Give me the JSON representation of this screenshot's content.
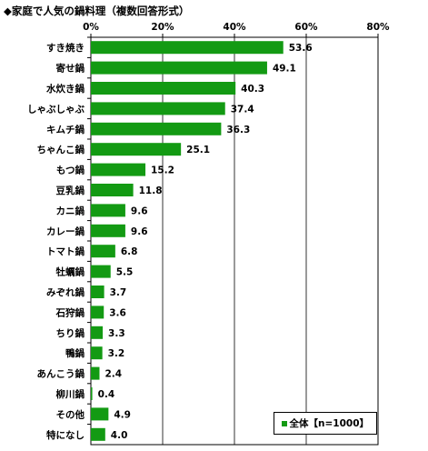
{
  "title": "◆家庭で人気の鍋料理（複数回答形式）",
  "chart_data": {
    "type": "bar",
    "orientation": "horizontal",
    "categories": [
      "すき焼き",
      "寄せ鍋",
      "水炊き鍋",
      "しゃぶしゃぶ",
      "キムチ鍋",
      "ちゃんこ鍋",
      "もつ鍋",
      "豆乳鍋",
      "カニ鍋",
      "カレー鍋",
      "トマト鍋",
      "牡蠣鍋",
      "みぞれ鍋",
      "石狩鍋",
      "ちり鍋",
      "鴨鍋",
      "あんこう鍋",
      "柳川鍋",
      "その他",
      "特になし"
    ],
    "values": [
      53.6,
      49.1,
      40.3,
      37.4,
      36.3,
      25.1,
      15.2,
      11.8,
      9.6,
      9.6,
      6.8,
      5.5,
      3.7,
      3.6,
      3.3,
      3.2,
      2.4,
      0.4,
      4.9,
      4.0
    ],
    "xlim": [
      0,
      80
    ],
    "x_ticks": [
      "0%",
      "20%",
      "40%",
      "60%",
      "80%"
    ],
    "series_name": "全体【n=1000】",
    "bar_color": "#139a13",
    "legend_position": "bottom-right",
    "grid": true
  }
}
